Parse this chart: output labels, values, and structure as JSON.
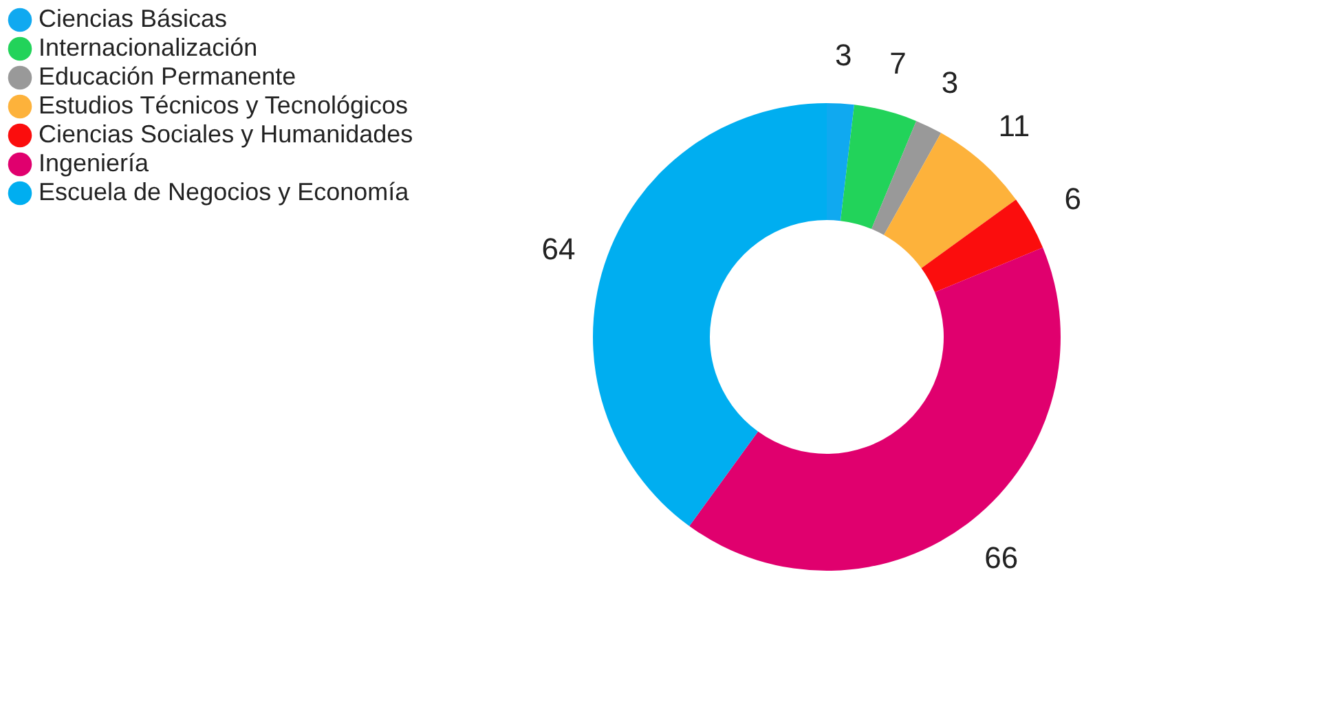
{
  "chart_data": {
    "type": "donut",
    "categories": [
      "Ciencias Básicas",
      "Internacionalización",
      "Educación Permanente",
      "Estudios Técnicos y Tecnológicos",
      "Ciencias Sociales y Humanidades",
      "Ingeniería",
      "Escuela de Negocios y Economía"
    ],
    "values": [
      3,
      7,
      3,
      11,
      6,
      66,
      64
    ],
    "colors": [
      "#10a9f0",
      "#22d35a",
      "#999999",
      "#fdb23b",
      "#fb0d0d",
      "#e0006e",
      "#00aef0"
    ],
    "data_labels": true,
    "legend": "left"
  }
}
